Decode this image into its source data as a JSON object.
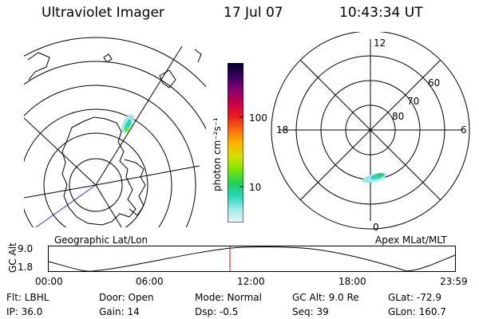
{
  "header": {
    "title": "Ultraviolet Imager",
    "date": "17 Jul 07",
    "time": "10:43:34 UT"
  },
  "left_panel": {
    "label": "Geographic Lat/Lon"
  },
  "right_panel": {
    "label": "Apex MLat/MLT",
    "mlt_top": "12",
    "mlt_left": "18",
    "mlt_right": "6",
    "mlt_bottom": "0",
    "lat_60": "60",
    "lat_70": "70",
    "lat_80": "80"
  },
  "colorbar": {
    "unit_label": "photon cm⁻²s⁻¹",
    "tick_high": "100",
    "tick_low": "10",
    "colors": [
      "#000033",
      "#3a005e",
      "#8a0070",
      "#c8004a",
      "#ee1c1c",
      "#f56a0c",
      "#fab300",
      "#d6de00",
      "#7ae800",
      "#1fd25a",
      "#22d6b8",
      "#9fe8ea",
      "#eaf3f6"
    ]
  },
  "altitude_plot": {
    "ylabel": "GC Alt",
    "yticks": [
      "9.0",
      "1.8"
    ],
    "xticks": [
      "00:00",
      "06:00",
      "12:00",
      "18:00",
      "23:59"
    ],
    "current_time_color": "#dd0000"
  },
  "info": {
    "filter": "Flt: LBHL",
    "ip": "IP: 36.0",
    "door": "Door: Open",
    "gain": "Gain: 14",
    "mode": "Mode: Normal",
    "dsp": "Dsp:    -0.5",
    "gc_alt": "GC Alt: 9.0 Re",
    "seq": "Seq: 39",
    "glat": "GLat: -72.9",
    "glon": "GLon: 160.7"
  }
}
